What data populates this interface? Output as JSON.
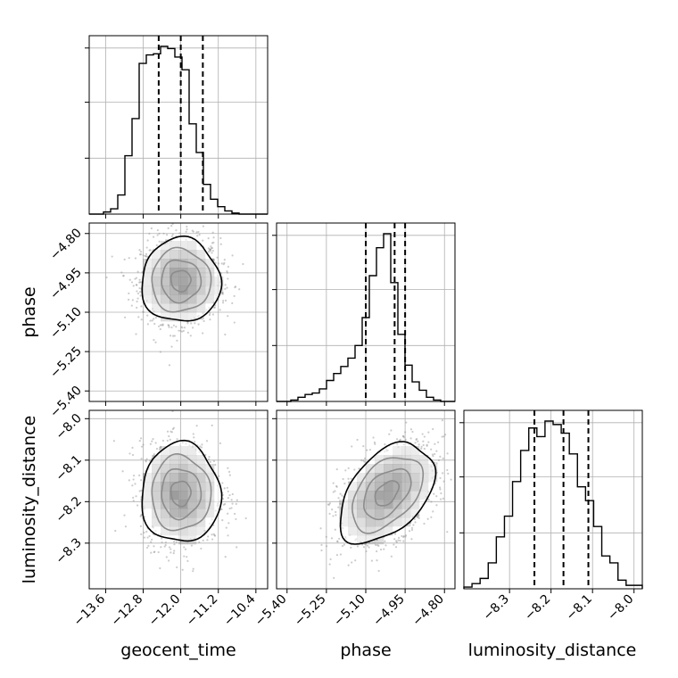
{
  "chart_data": {
    "type": "corner",
    "parameters": [
      "geocent_time",
      "phase",
      "luminosity_distance"
    ],
    "axis_labels": {
      "geocent_time": "geocent_time",
      "phase": "phase",
      "luminosity_distance": "luminosity_distance"
    },
    "ranges": {
      "geocent_time": [
        -13.95,
        -10.15
      ],
      "phase": [
        -5.44,
        -4.76
      ],
      "luminosity_distance": [
        -8.41,
        -7.98
      ]
    },
    "ticks": {
      "geocent_time": {
        "values": [
          -13.6,
          -12.8,
          -12.0,
          -11.2,
          -10.4
        ],
        "labels": [
          "−13.6",
          "−12.8",
          "−12.0",
          "−11.2",
          "−10.4"
        ]
      },
      "phase": {
        "values": [
          -5.4,
          -5.25,
          -5.1,
          -4.95,
          -4.8
        ],
        "labels": [
          "−5.40",
          "−5.25",
          "−5.10",
          "−4.95",
          "−4.80"
        ]
      },
      "luminosity_distance": {
        "values": [
          -8.3,
          -8.2,
          -8.1,
          -8.0
        ],
        "labels": [
          "−8.3",
          "−8.2",
          "−8.1",
          "−8.0"
        ]
      }
    },
    "quantiles": {
      "geocent_time": [
        -12.47,
        -12.0,
        -11.53
      ],
      "phase": [
        -5.1,
        -4.99,
        -4.95
      ],
      "luminosity_distance": [
        -8.24,
        -8.17,
        -8.11
      ]
    },
    "histograms": {
      "geocent_time": {
        "edges_range": [
          -13.95,
          -10.15
        ],
        "counts": [
          0,
          0,
          2,
          5,
          18,
          55,
          90,
          142,
          150,
          151,
          158,
          156,
          148,
          136,
          85,
          58,
          28,
          14,
          7,
          3,
          1,
          0,
          0,
          0,
          0
        ]
      },
      "phase": {
        "edges_range": [
          -5.44,
          -4.76
        ],
        "counts": [
          0,
          0,
          1,
          3,
          5,
          6,
          9,
          15,
          20,
          25,
          31,
          40,
          60,
          90,
          110,
          120,
          85,
          48,
          26,
          14,
          8,
          3,
          1,
          0,
          0
        ]
      },
      "luminosity_distance": {
        "edges_range": [
          -8.41,
          -7.98
        ],
        "counts": [
          1,
          3,
          6,
          15,
          30,
          42,
          62,
          80,
          93,
          88,
          97,
          95,
          90,
          78,
          59,
          51,
          36,
          19,
          15,
          5,
          2,
          2
        ]
      }
    },
    "pair_densities": [
      {
        "x": "geocent_time",
        "y": "phase",
        "mean": [
          -12.0,
          -4.98
        ],
        "sd": [
          0.42,
          0.08
        ],
        "corr": 0.0
      },
      {
        "x": "geocent_time",
        "y": "luminosity_distance",
        "mean": [
          -12.0,
          -8.18
        ],
        "sd": [
          0.42,
          0.06
        ],
        "corr": 0.0
      },
      {
        "x": "phase",
        "y": "luminosity_distance",
        "mean": [
          -5.02,
          -8.18
        ],
        "sd": [
          0.09,
          0.06
        ],
        "corr": 0.45
      }
    ],
    "contour_levels": [
      0.118,
      0.393,
      0.675,
      0.865
    ],
    "grid": true,
    "legend": "none"
  },
  "colors": {
    "axes": "#000000",
    "grid": "#b0b0b0",
    "scatter": "#9a9a9a",
    "density": "#000000"
  }
}
